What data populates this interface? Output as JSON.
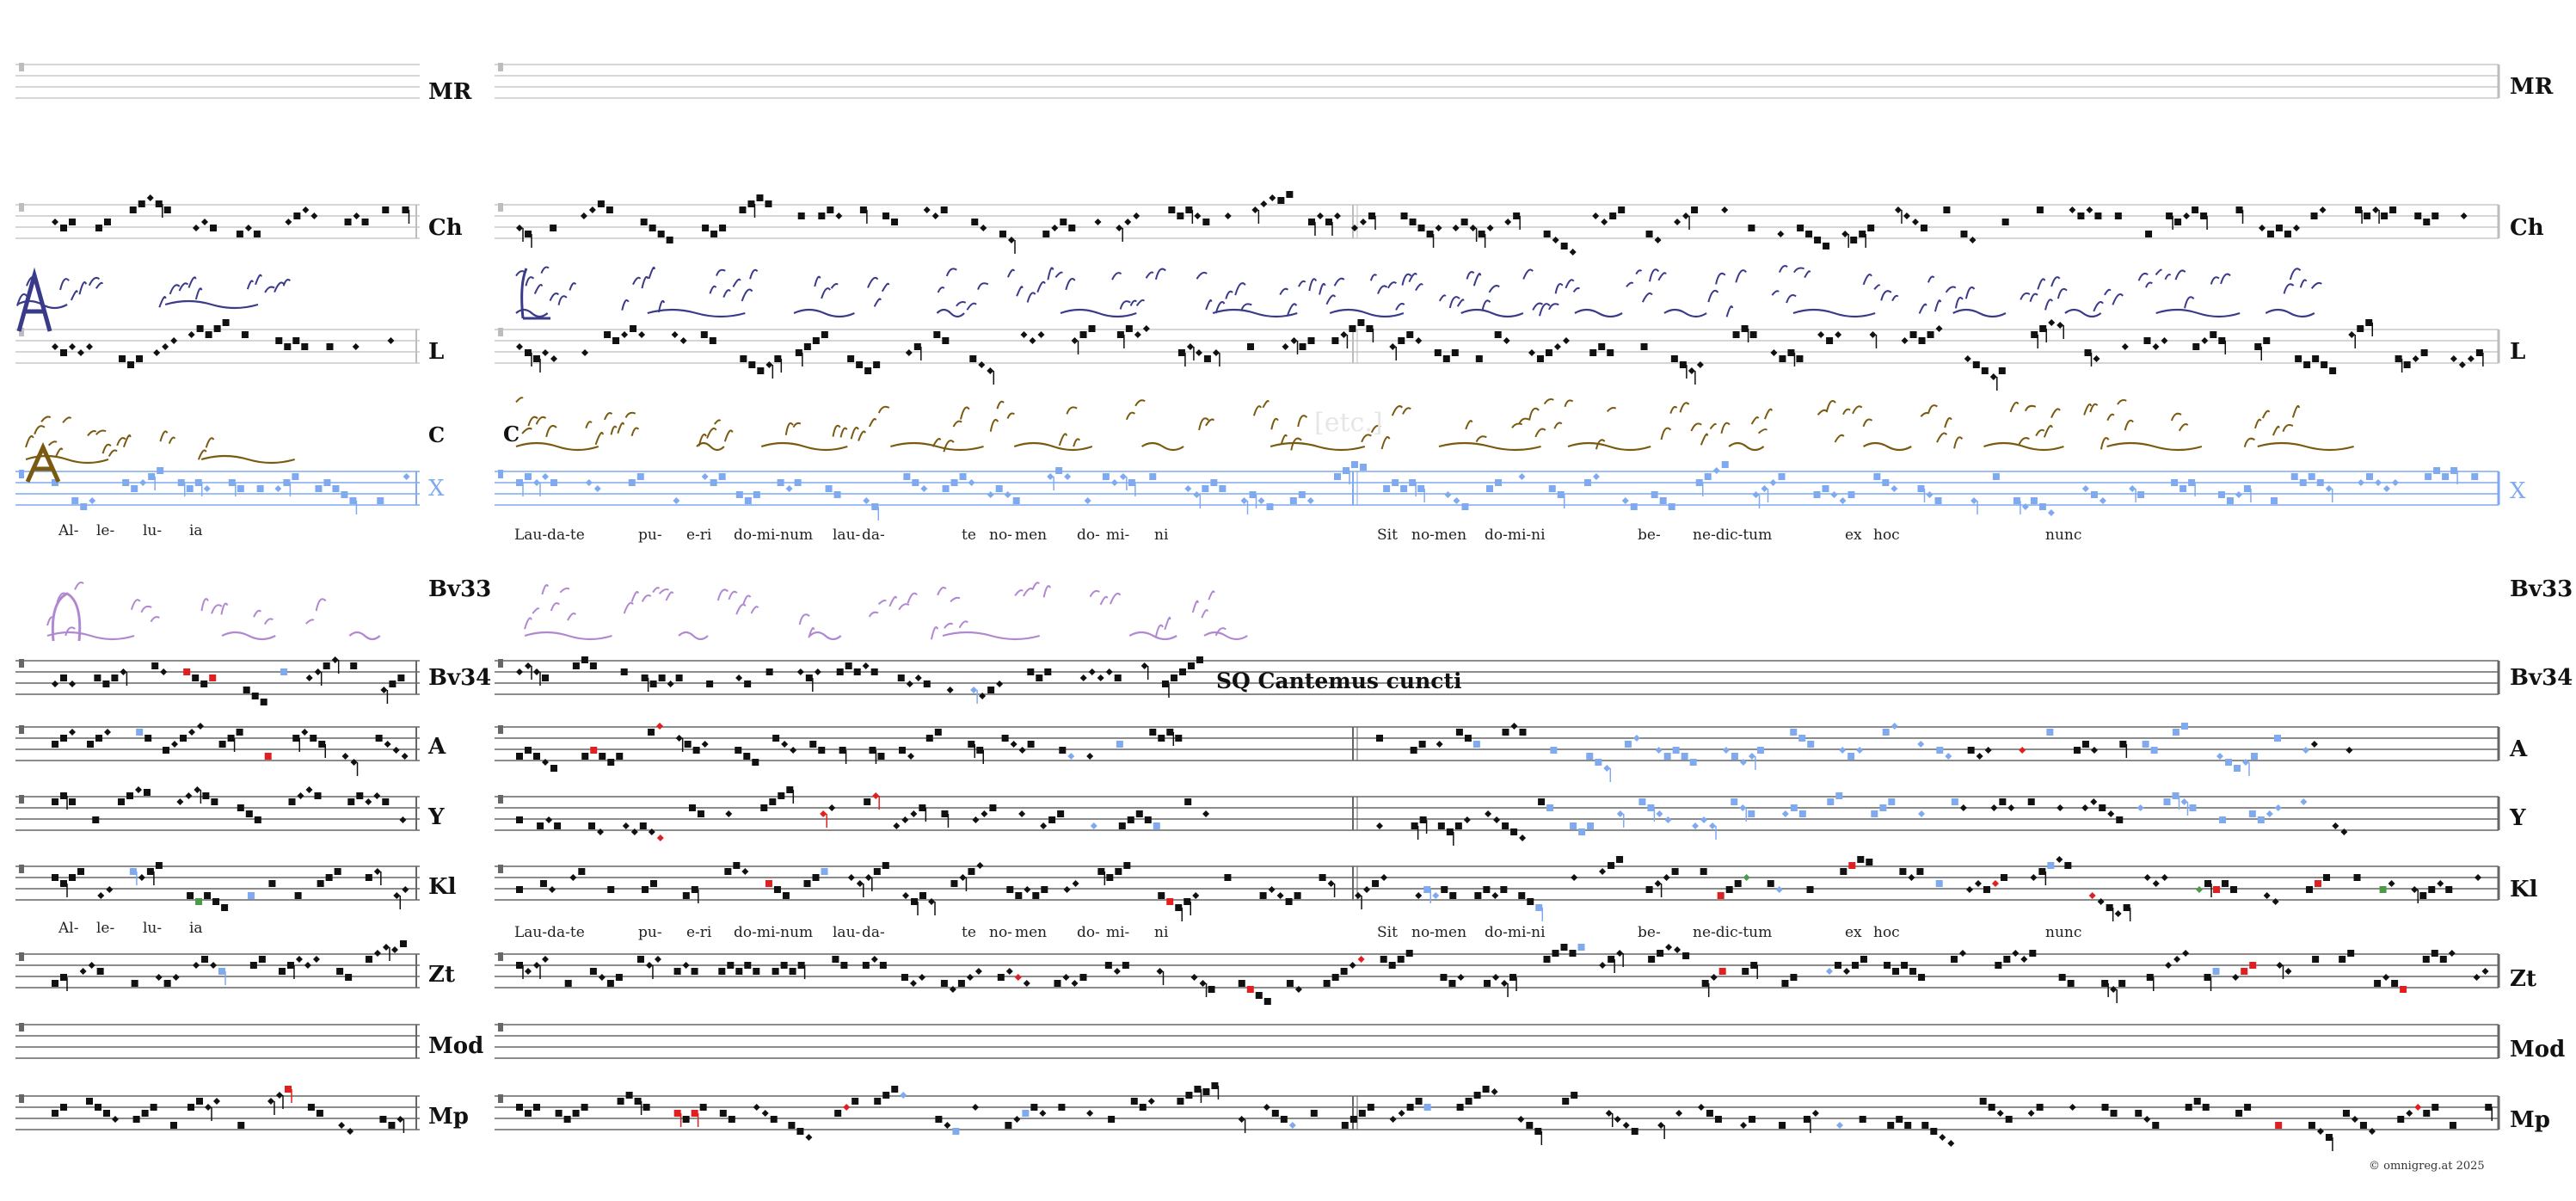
{
  "staff_labels": {
    "mr": "MR",
    "ch": "Ch",
    "l": "L",
    "c": "C",
    "x": "X",
    "bv33": "Bv33",
    "bv34": "Bv34",
    "a": "A",
    "y": "Y",
    "kl": "Kl",
    "zt": "Zt",
    "mod": "Mod",
    "mp": "Mp"
  },
  "lyrics_top": {
    "left": [
      "Al-",
      "le-",
      "lu-",
      "ia"
    ],
    "main": [
      "Lau-da-te",
      "pu-",
      "e-ri",
      "do-mi-num",
      "lau-",
      "da-",
      "te",
      "no-",
      "men",
      "do-",
      "mi-",
      "ni",
      "Sit",
      "no-men",
      "do-mi-ni",
      "be-",
      "ne-dic-tum",
      "ex",
      "hoc",
      "nunc"
    ]
  },
  "lyrics_bottom": {
    "left": [
      "Al-",
      "le-",
      "lu-",
      "ia"
    ],
    "main": [
      "Lau-da-te",
      "pu-",
      "e-ri",
      "do-mi-num",
      "lau-",
      "da-",
      "te",
      "no-",
      "men",
      "do-",
      "mi-",
      "ni",
      "Sit",
      "no-men",
      "do-mi-ni",
      "be-",
      "ne-dic-tum",
      "ex",
      "hoc",
      "nunc"
    ]
  },
  "etc_label": "[etc.]",
  "sequence_label": "SQ Cantemus cuncti",
  "copyright": "© omnigreg.at   2025",
  "manuscript_c_label": "C",
  "colors": {
    "note_black": "#111111",
    "note_blue": "#7faaf0",
    "note_red": "#e02020",
    "note_green": "#4a9a4a",
    "neume_navy": "#3a3a8a",
    "neume_brown": "#7a5a10",
    "neume_violet": "#b088d0",
    "staff_grey": "#9a9a9a"
  }
}
